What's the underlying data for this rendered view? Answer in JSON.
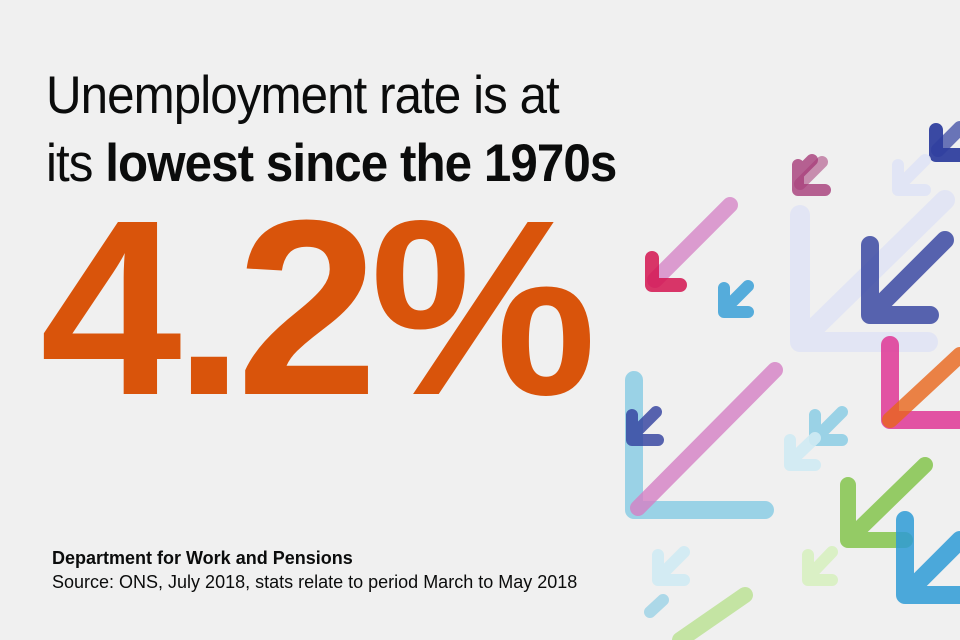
{
  "headline": {
    "line1": "Unemployment rate is at",
    "line2_prefix": "its ",
    "line2_bold": "lowest since the 1970s"
  },
  "stat": {
    "value": "4.2%",
    "color": "#d9540b"
  },
  "footer": {
    "organisation": "Department for Work and Pensions",
    "source": "Source: ONS, July 2018, stats relate to period March to May 2018"
  },
  "decoration": {
    "icon": "down-left-arrows",
    "colors": [
      "#d47fc4",
      "#d41450",
      "#2f3f9e",
      "#2e9bd6",
      "#7ec8e3",
      "#7dc242",
      "#e8651a",
      "#a63c79",
      "#dfe3f5"
    ]
  }
}
